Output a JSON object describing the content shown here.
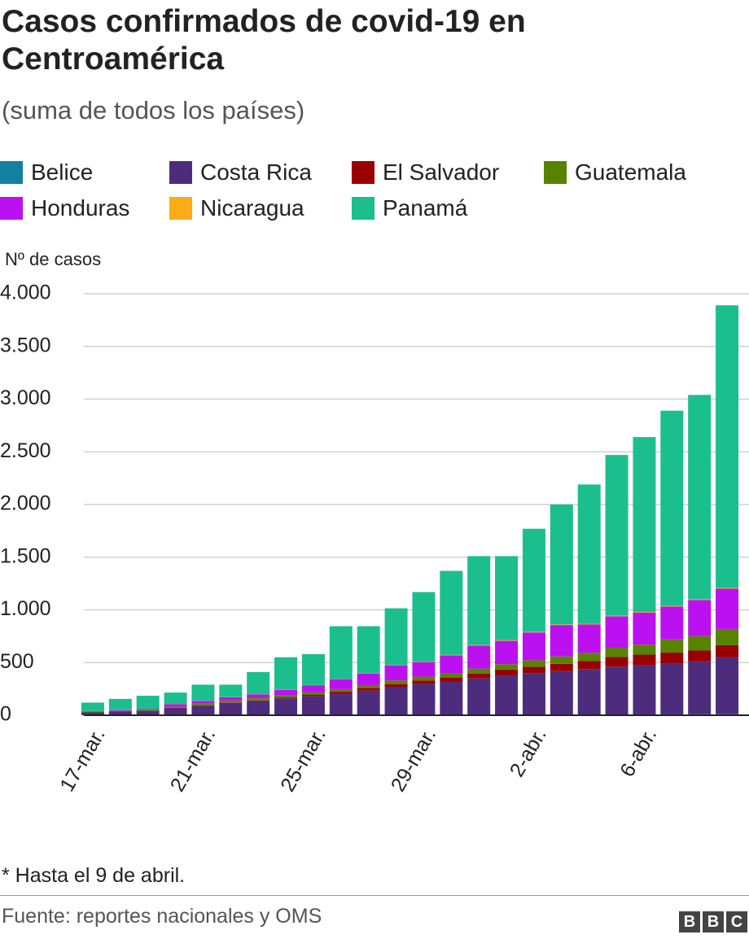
{
  "chart_data": {
    "type": "stacked_bar",
    "title": "Casos confirmados de covid-19 en Centroamérica",
    "subtitle": "(suma de todos los países)",
    "y_axis_label": "Nº de casos",
    "footnote": "* Hasta el 9 de abril.",
    "source": "Fuente: reportes nacionales y OMS",
    "categories": [
      "17-mar.",
      null,
      null,
      null,
      "21-mar.",
      null,
      null,
      null,
      "25-mar.",
      null,
      null,
      null,
      "29-mar.",
      null,
      null,
      null,
      "2-abr.",
      null,
      null,
      null,
      "6-abr.",
      null,
      null,
      null
    ],
    "series": [
      {
        "name": "Belice",
        "color": "#1380a1",
        "values": [
          0,
          0,
          0,
          0,
          1,
          1,
          2,
          2,
          3,
          3,
          3,
          3,
          3,
          3,
          3,
          3,
          3,
          3,
          3,
          7,
          7,
          8,
          9,
          10
        ]
      },
      {
        "name": "Costa Rica",
        "color": "#4d2c7e",
        "values": [
          27,
          35,
          41,
          69,
          89,
          117,
          134,
          158,
          177,
          201,
          231,
          263,
          295,
          314,
          347,
          375,
          396,
          416,
          435,
          454,
          467,
          483,
          502,
          539
        ]
      },
      {
        "name": "El Salvador",
        "color": "#990000",
        "values": [
          0,
          0,
          1,
          1,
          3,
          3,
          5,
          9,
          13,
          19,
          24,
          30,
          32,
          41,
          46,
          56,
          62,
          69,
          78,
          93,
          101,
          103,
          103,
          117
        ]
      },
      {
        "name": "Guatemala",
        "color": "#588300",
        "values": [
          6,
          6,
          9,
          12,
          17,
          19,
          20,
          21,
          24,
          25,
          28,
          34,
          36,
          39,
          47,
          50,
          61,
          70,
          77,
          87,
          95,
          126,
          137,
          153
        ]
      },
      {
        "name": "Honduras",
        "color": "#bb11f0",
        "values": [
          6,
          8,
          9,
          24,
          26,
          30,
          36,
          52,
          68,
          95,
          110,
          141,
          139,
          172,
          219,
          222,
          264,
          298,
          268,
          298,
          305,
          312,
          343,
          382
        ]
      },
      {
        "name": "Nicaragua",
        "color": "#faab18",
        "values": [
          1,
          1,
          1,
          1,
          2,
          2,
          2,
          2,
          2,
          2,
          2,
          4,
          4,
          5,
          5,
          6,
          6,
          6,
          6,
          6,
          6,
          7,
          7,
          8
        ]
      },
      {
        "name": "Panamá",
        "color": "#1bbf8e",
        "values": [
          80,
          105,
          124,
          108,
          152,
          118,
          211,
          306,
          293,
          500,
          447,
          540,
          660,
          796,
          843,
          798,
          978,
          1138,
          1323,
          1525,
          1659,
          1851,
          1939,
          2681
        ]
      }
    ],
    "ylim": [
      0,
      4000
    ],
    "yticks": [
      0,
      {
        "value": 500,
        "label": "500"
      },
      {
        "value": 1000,
        "label": "1.000"
      },
      {
        "value": 1500,
        "label": "1.500"
      },
      {
        "value": 2000,
        "label": "2.000"
      },
      {
        "value": 2500,
        "label": "2.500"
      },
      {
        "value": 3000,
        "label": "3.000"
      },
      {
        "value": 3500,
        "label": "3.500"
      },
      {
        "value": 4000,
        "label": "4.000"
      }
    ],
    "grid": true
  }
}
